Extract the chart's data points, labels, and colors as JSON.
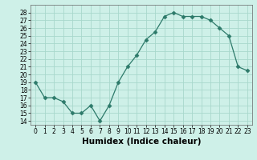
{
  "x": [
    0,
    1,
    2,
    3,
    4,
    5,
    6,
    7,
    8,
    9,
    10,
    11,
    12,
    13,
    14,
    15,
    16,
    17,
    18,
    19,
    20,
    21,
    22,
    23
  ],
  "y": [
    19,
    17,
    17,
    16.5,
    15,
    15,
    16,
    14,
    16,
    19,
    21,
    22.5,
    24.5,
    25.5,
    27.5,
    28,
    27.5,
    27.5,
    27.5,
    27,
    26,
    25,
    21,
    20.5
  ],
  "line_color": "#2d7a6a",
  "marker": "D",
  "marker_size": 2.5,
  "bg_color": "#cef0e8",
  "grid_color": "#a8d8cc",
  "xlabel": "Humidex (Indice chaleur)",
  "xlim": [
    -0.5,
    23.5
  ],
  "ylim": [
    13.5,
    29
  ],
  "yticks": [
    14,
    15,
    16,
    17,
    18,
    19,
    20,
    21,
    22,
    23,
    24,
    25,
    26,
    27,
    28
  ],
  "xticks": [
    0,
    1,
    2,
    3,
    4,
    5,
    6,
    7,
    8,
    9,
    10,
    11,
    12,
    13,
    14,
    15,
    16,
    17,
    18,
    19,
    20,
    21,
    22,
    23
  ],
  "tick_fontsize": 5.5,
  "xlabel_fontsize": 7.5
}
